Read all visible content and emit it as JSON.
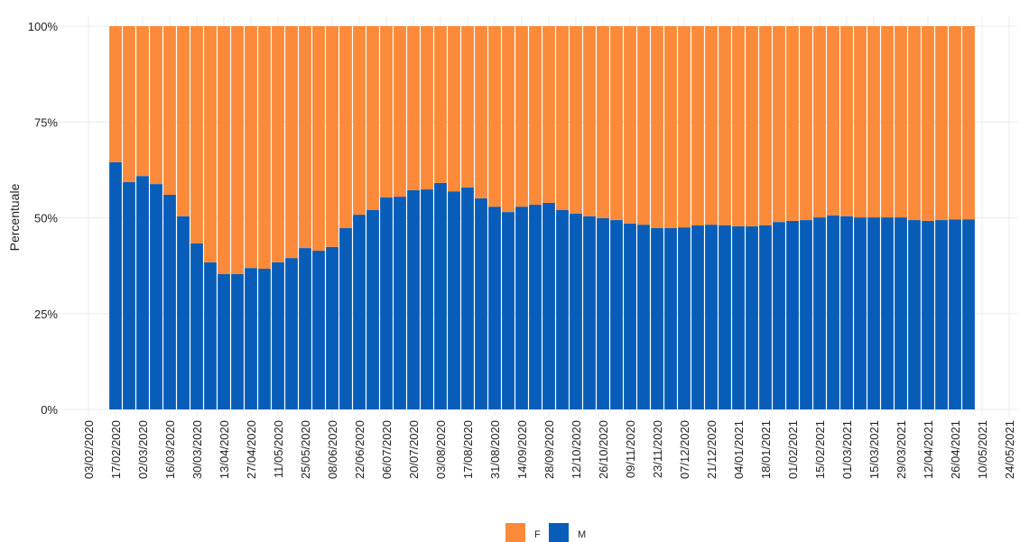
{
  "chart_data": {
    "type": "stacked-bar",
    "y_label": "Percentuale",
    "x": [
      "17/02/2020",
      "24/02/2020",
      "02/03/2020",
      "09/03/2020",
      "16/03/2020",
      "23/03/2020",
      "30/03/2020",
      "06/04/2020",
      "13/04/2020",
      "20/04/2020",
      "27/04/2020",
      "04/05/2020",
      "11/05/2020",
      "18/05/2020",
      "25/05/2020",
      "01/06/2020",
      "08/06/2020",
      "15/06/2020",
      "22/06/2020",
      "29/06/2020",
      "06/07/2020",
      "13/07/2020",
      "20/07/2020",
      "27/07/2020",
      "03/08/2020",
      "10/08/2020",
      "17/08/2020",
      "24/08/2020",
      "31/08/2020",
      "07/09/2020",
      "14/09/2020",
      "21/09/2020",
      "28/09/2020",
      "05/10/2020",
      "12/10/2020",
      "19/10/2020",
      "26/10/2020",
      "02/11/2020",
      "09/11/2020",
      "16/11/2020",
      "23/11/2020",
      "30/11/2020",
      "07/12/2020",
      "14/12/2020",
      "21/12/2020",
      "28/12/2020",
      "04/01/2021",
      "11/01/2021",
      "18/01/2021",
      "25/01/2021",
      "01/02/2021",
      "08/02/2021",
      "15/02/2021",
      "22/02/2021",
      "01/03/2021",
      "08/03/2021",
      "15/03/2021",
      "22/03/2021",
      "29/03/2021",
      "05/04/2021",
      "12/04/2021",
      "19/04/2021",
      "26/04/2021",
      "03/05/2021"
    ],
    "series": [
      {
        "name": "F",
        "color": "#fb8a3a",
        "values": [
          35.5,
          40.7,
          39.1,
          41.2,
          44,
          49.6,
          56.7,
          61.6,
          64.7,
          64.7,
          63.1,
          63.3,
          61.6,
          60.5,
          57.9,
          58.6,
          57.6,
          52.7,
          49.2,
          48,
          44.7,
          44.5,
          42.8,
          42.6,
          40.9,
          43.1,
          42.1,
          44.9,
          47.1,
          48.5,
          47.1,
          46.6,
          46.1,
          48,
          48.9,
          49.6,
          50.1,
          50.6,
          51.5,
          51.8,
          52.7,
          52.7,
          52.5,
          52,
          51.8,
          52,
          52.2,
          52.2,
          52,
          51.1,
          50.8,
          50.6,
          49.9,
          49.4,
          49.6,
          49.9,
          49.9,
          49.9,
          49.9,
          50.6,
          50.8,
          50.6,
          50.4,
          50.4
        ]
      },
      {
        "name": "M",
        "color": "#085db9",
        "values": [
          64.5,
          59.3,
          60.9,
          58.8,
          56,
          50.4,
          43.3,
          38.4,
          35.3,
          35.3,
          36.9,
          36.7,
          38.4,
          39.5,
          42.1,
          41.4,
          42.4,
          47.3,
          50.8,
          52,
          55.3,
          55.5,
          57.2,
          57.4,
          59.1,
          56.9,
          57.9,
          55.1,
          52.9,
          51.5,
          52.9,
          53.4,
          53.9,
          52,
          51.1,
          50.4,
          49.9,
          49.4,
          48.5,
          48.2,
          47.3,
          47.3,
          47.5,
          48,
          48.2,
          48,
          47.8,
          47.8,
          48,
          48.9,
          49.2,
          49.4,
          50.1,
          50.6,
          50.4,
          50.1,
          50.1,
          50.1,
          50.1,
          49.4,
          49.2,
          49.4,
          49.6,
          49.6
        ]
      }
    ],
    "xlim": [
      "03/02/2020",
      "24/05/2021"
    ],
    "xticks": [
      "03/02/2020",
      "17/02/2020",
      "02/03/2020",
      "16/03/2020",
      "30/03/2020",
      "13/04/2020",
      "27/04/2020",
      "11/05/2020",
      "25/05/2020",
      "08/06/2020",
      "22/06/2020",
      "06/07/2020",
      "20/07/2020",
      "03/08/2020",
      "17/08/2020",
      "31/08/2020",
      "14/09/2020",
      "28/09/2020",
      "12/10/2020",
      "26/10/2020",
      "09/11/2020",
      "23/11/2020",
      "07/12/2020",
      "21/12/2020",
      "04/01/2021",
      "18/01/2021",
      "01/02/2021",
      "15/02/2021",
      "01/03/2021",
      "15/03/2021",
      "29/03/2021",
      "12/04/2021",
      "26/04/2021",
      "10/05/2021",
      "24/05/2021"
    ],
    "ylim": [
      0,
      100
    ],
    "yticks": [
      {
        "value": 0,
        "label": "0%"
      },
      {
        "value": 25,
        "label": "25%"
      },
      {
        "value": 50,
        "label": "50%"
      },
      {
        "value": 75,
        "label": "75%"
      },
      {
        "value": 100,
        "label": "100%"
      }
    ],
    "grid": true,
    "legend": "bottom"
  }
}
